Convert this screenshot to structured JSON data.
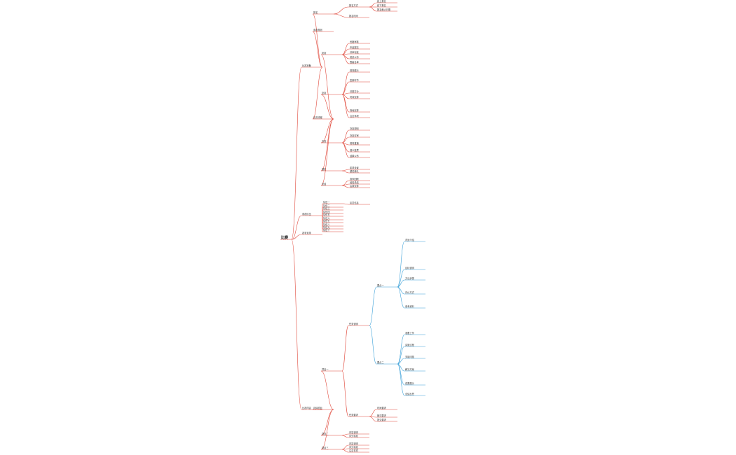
{
  "mindmap": {
    "root": {
      "label": "比赛",
      "children": [
        {
          "label": "比赛准备",
          "children": [
            {
              "label": "报名",
              "children": [
                {
                  "label": "报名方式",
                  "children": [
                    {
                      "label": "线上报名"
                    },
                    {
                      "label": "线下报名"
                    },
                    {
                      "label": "报名截止日期"
                    }
                  ]
                },
                {
                  "label": "报名时间"
                }
              ]
            },
            {
              "label": "参赛规则"
            },
            {
              "label": "比赛流程",
              "children": [
                {
                  "label": "初赛",
                  "children": [
                    {
                      "label": "资格审核"
                    },
                    {
                      "label": "作品提交"
                    },
                    {
                      "label": "评审标准"
                    },
                    {
                      "label": "成绩公布"
                    },
                    {
                      "label": "晋级名单"
                    }
                  ]
                },
                {
                  "label": "复赛",
                  "children": [
                    {
                      "label": "现场展示"
                    },
                    {
                      "label": "答辩环节"
                    },
                    {
                      "label": "评委打分"
                    },
                    {
                      "label": "时间安排"
                    },
                    {
                      "label": "场地安排"
                    },
                    {
                      "label": "注意事项"
                    }
                  ]
                },
                {
                  "label": "决赛",
                  "children": [
                    {
                      "label": "决赛规则"
                    },
                    {
                      "label": "决赛评审"
                    },
                    {
                      "label": "现场直播"
                    },
                    {
                      "label": "观众投票"
                    },
                    {
                      "label": "结果公布"
                    }
                  ]
                },
                {
                  "label": "颁奖",
                  "children": [
                    {
                      "label": "奖项设置"
                    },
                    {
                      "label": "颁奖典礼"
                    }
                  ]
                },
                {
                  "label": "总结",
                  "children": [
                    {
                      "label": "赛事回顾"
                    },
                    {
                      "label": "经验总结"
                    },
                    {
                      "label": "后续安排"
                    }
                  ]
                }
              ]
            }
          ]
        },
        {
          "label": "参赛队伍",
          "children": [
            {
              "label": "队伍一",
              "children": [
                {
                  "label": "队员信息"
                }
              ]
            },
            {
              "label": "队伍二"
            },
            {
              "label": "队伍三"
            },
            {
              "label": "队伍四"
            },
            {
              "label": "队伍五"
            },
            {
              "label": "队伍六"
            },
            {
              "label": "队伍七"
            },
            {
              "label": "队伍八"
            },
            {
              "label": "队伍九"
            },
            {
              "label": "队伍十"
            }
          ]
        },
        {
          "label": "赛事安排"
        },
        {
          "label": "比赛内容",
          "children": [
            {
              "label": "具体项目",
              "children": [
                {
                  "label": "项目一",
                  "children": [
                    {
                      "label": "任务说明",
                      "children": [
                        {
                          "label": "要点一",
                          "color": "#3aa0d8",
                          "children": [
                            {
                              "label": "背景介绍"
                            },
                            {
                              "label": "目标说明"
                            },
                            {
                              "label": "方法步骤"
                            },
                            {
                              "label": "评价方式"
                            },
                            {
                              "label": "参考资料"
                            }
                          ]
                        },
                        {
                          "label": "要点二",
                          "color": "#3aa0d8",
                          "children": [
                            {
                              "label": "准备工作"
                            },
                            {
                              "label": "实施过程"
                            },
                            {
                              "label": "关键问题"
                            },
                            {
                              "label": "解决方案"
                            },
                            {
                              "label": "成果展示"
                            },
                            {
                              "label": "总结反思"
                            }
                          ]
                        }
                      ]
                    },
                    {
                      "label": "任务要求",
                      "children": [
                        {
                          "label": "时间要求"
                        },
                        {
                          "label": "格式要求"
                        },
                        {
                          "label": "提交要求"
                        }
                      ]
                    }
                  ]
                },
                {
                  "label": "项目二",
                  "children": [
                    {
                      "label": "内容说明"
                    },
                    {
                      "label": "评分标准"
                    }
                  ]
                },
                {
                  "label": "项目三",
                  "children": [
                    {
                      "label": "内容说明"
                    },
                    {
                      "label": "评分标准"
                    },
                    {
                      "label": "注意事项"
                    }
                  ]
                }
              ]
            }
          ]
        }
      ]
    }
  }
}
